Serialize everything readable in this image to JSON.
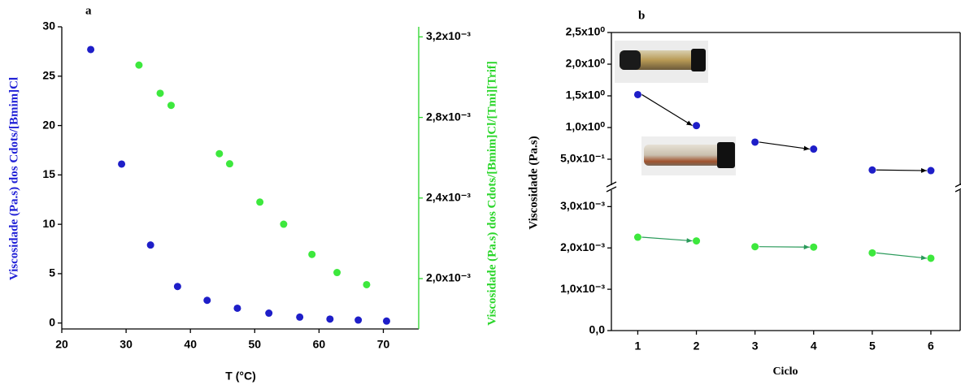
{
  "chart_data": [
    {
      "type": "scatter",
      "title": "a",
      "xlabel": "T (°C)",
      "ylabel": "Viscosidade (Pa.s) dos Cdots/[Bmim]Cl",
      "y2label": "Viscosidade (Pa.s) dos Cdots/[Bmim]Cl/[Tmi][Trif]",
      "ylabel_color": "#1f1fd6",
      "y2label_color": "#2ad62a",
      "xlim": [
        20,
        75.5
      ],
      "xticks": [
        20,
        30,
        40,
        50,
        60,
        70
      ],
      "ylim": [
        -0.6,
        30
      ],
      "yticks": [
        0,
        5,
        10,
        15,
        20,
        25,
        30
      ],
      "y2lim": [
        0.00175,
        0.00325
      ],
      "y2ticks": [
        {
          "value": 0.002,
          "label": "2,0x10⁻³"
        },
        {
          "value": 0.0024,
          "label": "2,4x10⁻³"
        },
        {
          "value": 0.0028,
          "label": "2,8x10⁻³"
        },
        {
          "value": 0.0032,
          "label": "3,2x10⁻³"
        }
      ],
      "series": [
        {
          "color": "#1e1ec8",
          "x": [
            24.5,
            29.3,
            33.8,
            38,
            42.6,
            47.3,
            52.2,
            57,
            61.7,
            66.1,
            70.5
          ],
          "values": [
            27.7,
            16.1,
            7.9,
            3.7,
            2.3,
            1.5,
            1.0,
            0.6,
            0.4,
            0.3,
            0.2
          ]
        },
        {
          "color": "#3de83d",
          "axis": "y2",
          "x": [
            32,
            35.3,
            37,
            44.5,
            46.1,
            50.8,
            54.5,
            58.9,
            62.8,
            67.4
          ],
          "values": [
            0.00306,
            0.00292,
            0.00286,
            0.00262,
            0.00257,
            0.00238,
            0.00227,
            0.00212,
            0.00203,
            0.00197
          ]
        }
      ]
    },
    {
      "type": "scatter",
      "title": "b",
      "xlabel": "Ciclo",
      "ylabel": "Viscosidade (Pa.s)",
      "xlim": [
        0.55,
        6.5
      ],
      "xticks": [
        1,
        2,
        3,
        4,
        5,
        6
      ],
      "y_segments": [
        {
          "ylim": [
            0.09,
            2.5
          ],
          "yticks": [
            {
              "value": 0.5,
              "label": "5,0x10⁻¹"
            },
            {
              "value": 1.0,
              "label": "1,0x10⁰"
            },
            {
              "value": 1.5,
              "label": "1,5x10⁰"
            },
            {
              "value": 2.0,
              "label": "2,0x10⁰"
            },
            {
              "value": 2.5,
              "label": "2,5x10⁰"
            }
          ]
        },
        {
          "ylim": [
            0,
            0.0034
          ],
          "yticks": [
            {
              "value": 0,
              "label": "0,0"
            },
            {
              "value": 0.001,
              "label": "1,0x10⁻³"
            },
            {
              "value": 0.002,
              "label": "2,0x10⁻³"
            },
            {
              "value": 0.003,
              "label": "3,0x10⁻³"
            }
          ]
        }
      ],
      "series": [
        {
          "color": "#1e1ec8",
          "arrow_color": "#000000",
          "segment": 0,
          "x": [
            1,
            2,
            3,
            4,
            5,
            6
          ],
          "values": [
            1.52,
            1.03,
            0.77,
            0.66,
            0.33,
            0.32
          ]
        },
        {
          "color": "#3de83d",
          "arrow_color": "#2a9a5a",
          "segment": 1,
          "x": [
            1,
            2,
            3,
            4,
            5,
            6
          ],
          "values": [
            0.00226,
            0.00217,
            0.00203,
            0.00202,
            0.00188,
            0.00175
          ]
        }
      ]
    }
  ]
}
